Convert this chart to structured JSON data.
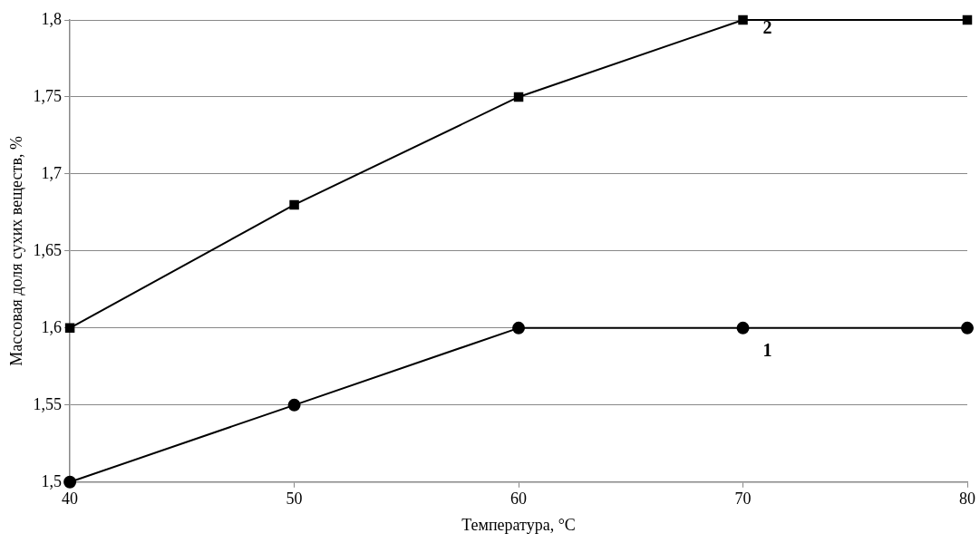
{
  "chart_data": {
    "type": "line",
    "xlabel": "Температура, °C",
    "ylabel": "Массовая доля сухих веществ, %",
    "x": [
      40,
      50,
      60,
      70,
      80
    ],
    "series": [
      {
        "name": "1",
        "color": "#000000",
        "marker": "circle",
        "values": [
          1.5,
          1.55,
          1.6,
          1.6,
          1.6
        ]
      },
      {
        "name": "2",
        "color": "#000000",
        "marker": "square",
        "values": [
          1.6,
          1.68,
          1.75,
          1.8,
          1.8
        ]
      }
    ],
    "xlim": [
      40,
      80
    ],
    "xticks": [
      40,
      50,
      60,
      70,
      80
    ],
    "ylim": [
      1.5,
      1.8
    ],
    "yticks": [
      {
        "value": 1.5,
        "label": "1,5"
      },
      {
        "value": 1.55,
        "label": "1,55"
      },
      {
        "value": 1.6,
        "label": "1,6"
      },
      {
        "value": 1.65,
        "label": "1,65"
      },
      {
        "value": 1.7,
        "label": "1,7"
      },
      {
        "value": 1.75,
        "label": "1,75"
      },
      {
        "value": 1.8,
        "label": "1,8"
      }
    ],
    "grid": "y",
    "legend": false,
    "line_style": "solid"
  }
}
